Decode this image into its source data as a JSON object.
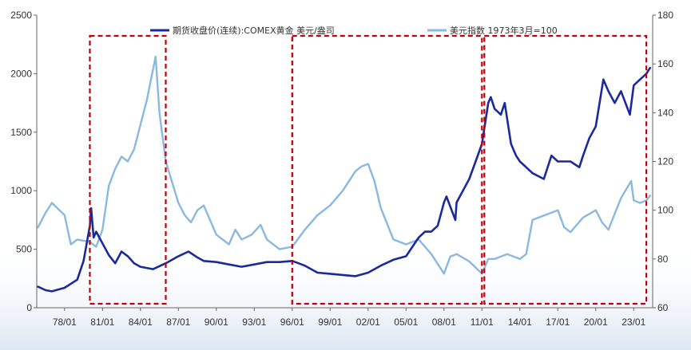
{
  "chart_data": {
    "type": "line",
    "x_ticks": [
      "78/01",
      "81/01",
      "84/01",
      "87/01",
      "90/01",
      "93/01",
      "96/01",
      "99/01",
      "02/01",
      "05/01",
      "08/01",
      "11/01",
      "14/01",
      "17/01",
      "20/01",
      "23/01"
    ],
    "y_left": {
      "ticks": [
        "0",
        "500",
        "1000",
        "1500",
        "2000",
        "2500"
      ],
      "min": 0,
      "max": 2500
    },
    "y_right": {
      "ticks": [
        "60",
        "80",
        "100",
        "120",
        "140",
        "160",
        "180"
      ],
      "min": 60,
      "max": 180
    },
    "series": [
      {
        "name": "期货收盘价(连续):COMEX黄金 美元/盎司",
        "axis": "left",
        "color": "#1a2a9c",
        "x": [
          1975.9,
          1976.5,
          1977.0,
          1978.0,
          1979.0,
          1979.5,
          1980.0,
          1980.1,
          1980.3,
          1980.5,
          1981.0,
          1981.5,
          1982.0,
          1982.5,
          1983.0,
          1983.5,
          1984.0,
          1985.0,
          1986.0,
          1987.0,
          1987.8,
          1988.5,
          1989.0,
          1990.0,
          1991.0,
          1992.0,
          1993.0,
          1994.0,
          1995.0,
          1996.0,
          1996.5,
          1997.0,
          1998.0,
          1999.0,
          2000.0,
          2001.0,
          2002.0,
          2003.0,
          2004.0,
          2005.0,
          2006.0,
          2006.5,
          2007.0,
          2007.5,
          2008.0,
          2008.2,
          2008.9,
          2009.0,
          2009.5,
          2010.0,
          2010.5,
          2011.0,
          2011.5,
          2011.7,
          2012.0,
          2012.5,
          2012.8,
          2013.3,
          2013.7,
          2014.0,
          2015.0,
          2015.9,
          2016.5,
          2017.0,
          2018.0,
          2018.7,
          2019.0,
          2019.5,
          2020.0,
          2020.6,
          2021.0,
          2021.5,
          2022.0,
          2022.7,
          2023.0,
          2023.5,
          2024.0,
          2024.3
        ],
        "values": [
          180,
          150,
          140,
          170,
          240,
          400,
          700,
          850,
          600,
          650,
          550,
          450,
          380,
          480,
          440,
          380,
          350,
          330,
          380,
          440,
          480,
          430,
          400,
          390,
          370,
          350,
          370,
          390,
          390,
          400,
          380,
          360,
          300,
          290,
          280,
          270,
          300,
          360,
          410,
          440,
          600,
          650,
          650,
          700,
          900,
          950,
          750,
          900,
          1000,
          1100,
          1250,
          1400,
          1750,
          1800,
          1700,
          1650,
          1750,
          1400,
          1300,
          1250,
          1150,
          1100,
          1300,
          1250,
          1250,
          1200,
          1300,
          1450,
          1550,
          1950,
          1850,
          1750,
          1850,
          1650,
          1900,
          1950,
          2000,
          2050
        ]
      },
      {
        "name": "美元指数 1973年3月=100",
        "axis": "right",
        "color": "#8ab8df",
        "x": [
          1975.9,
          1976.5,
          1977.0,
          1978.0,
          1978.5,
          1979.0,
          1980.0,
          1980.5,
          1981.0,
          1981.5,
          1982.0,
          1982.5,
          1983.0,
          1983.5,
          1984.0,
          1984.5,
          1985.0,
          1985.2,
          1985.5,
          1986.0,
          1987.0,
          1987.5,
          1988.0,
          1988.5,
          1989.0,
          1989.5,
          1990.0,
          1991.0,
          1991.5,
          1992.0,
          1992.8,
          1993.5,
          1994.0,
          1995.0,
          1996.0,
          1997.0,
          1998.0,
          1999.0,
          2000.0,
          2001.0,
          2001.5,
          2002.0,
          2002.5,
          2003.0,
          2004.0,
          2005.0,
          2006.0,
          2007.0,
          2008.0,
          2008.5,
          2009.0,
          2010.0,
          2011.0,
          2011.5,
          2012.0,
          2013.0,
          2014.0,
          2014.5,
          2015.0,
          2015.5,
          2016.0,
          2017.0,
          2017.5,
          2018.0,
          2019.0,
          2020.0,
          2020.5,
          2021.0,
          2022.0,
          2022.8,
          2023.0,
          2023.5,
          2024.0,
          2024.3
        ],
        "values": [
          93,
          99,
          103,
          98,
          86,
          88,
          87,
          85,
          92,
          110,
          117,
          122,
          120,
          125,
          135,
          145,
          158,
          163,
          140,
          120,
          103,
          98,
          95,
          100,
          102,
          96,
          90,
          86,
          92,
          88,
          90,
          94,
          88,
          84,
          85,
          92,
          98,
          102,
          108,
          116,
          118,
          119,
          112,
          101,
          88,
          86,
          88,
          82,
          74,
          81,
          82,
          79,
          74,
          80,
          80,
          82,
          80,
          82,
          96,
          97,
          98,
          100,
          93,
          91,
          97,
          100,
          95,
          92,
          105,
          112,
          104,
          103,
          104,
          106
        ]
      }
    ]
  },
  "highlight_periods": [
    {
      "start": "80/01",
      "end": "86/01"
    },
    {
      "start": "96/01",
      "end": "11/01"
    },
    {
      "start": "11/01",
      "end": "24/01"
    }
  ],
  "style": {
    "highlight_color": "#c0000d",
    "axis_color": "#666666",
    "bg_band_color": "#e7eef7"
  }
}
